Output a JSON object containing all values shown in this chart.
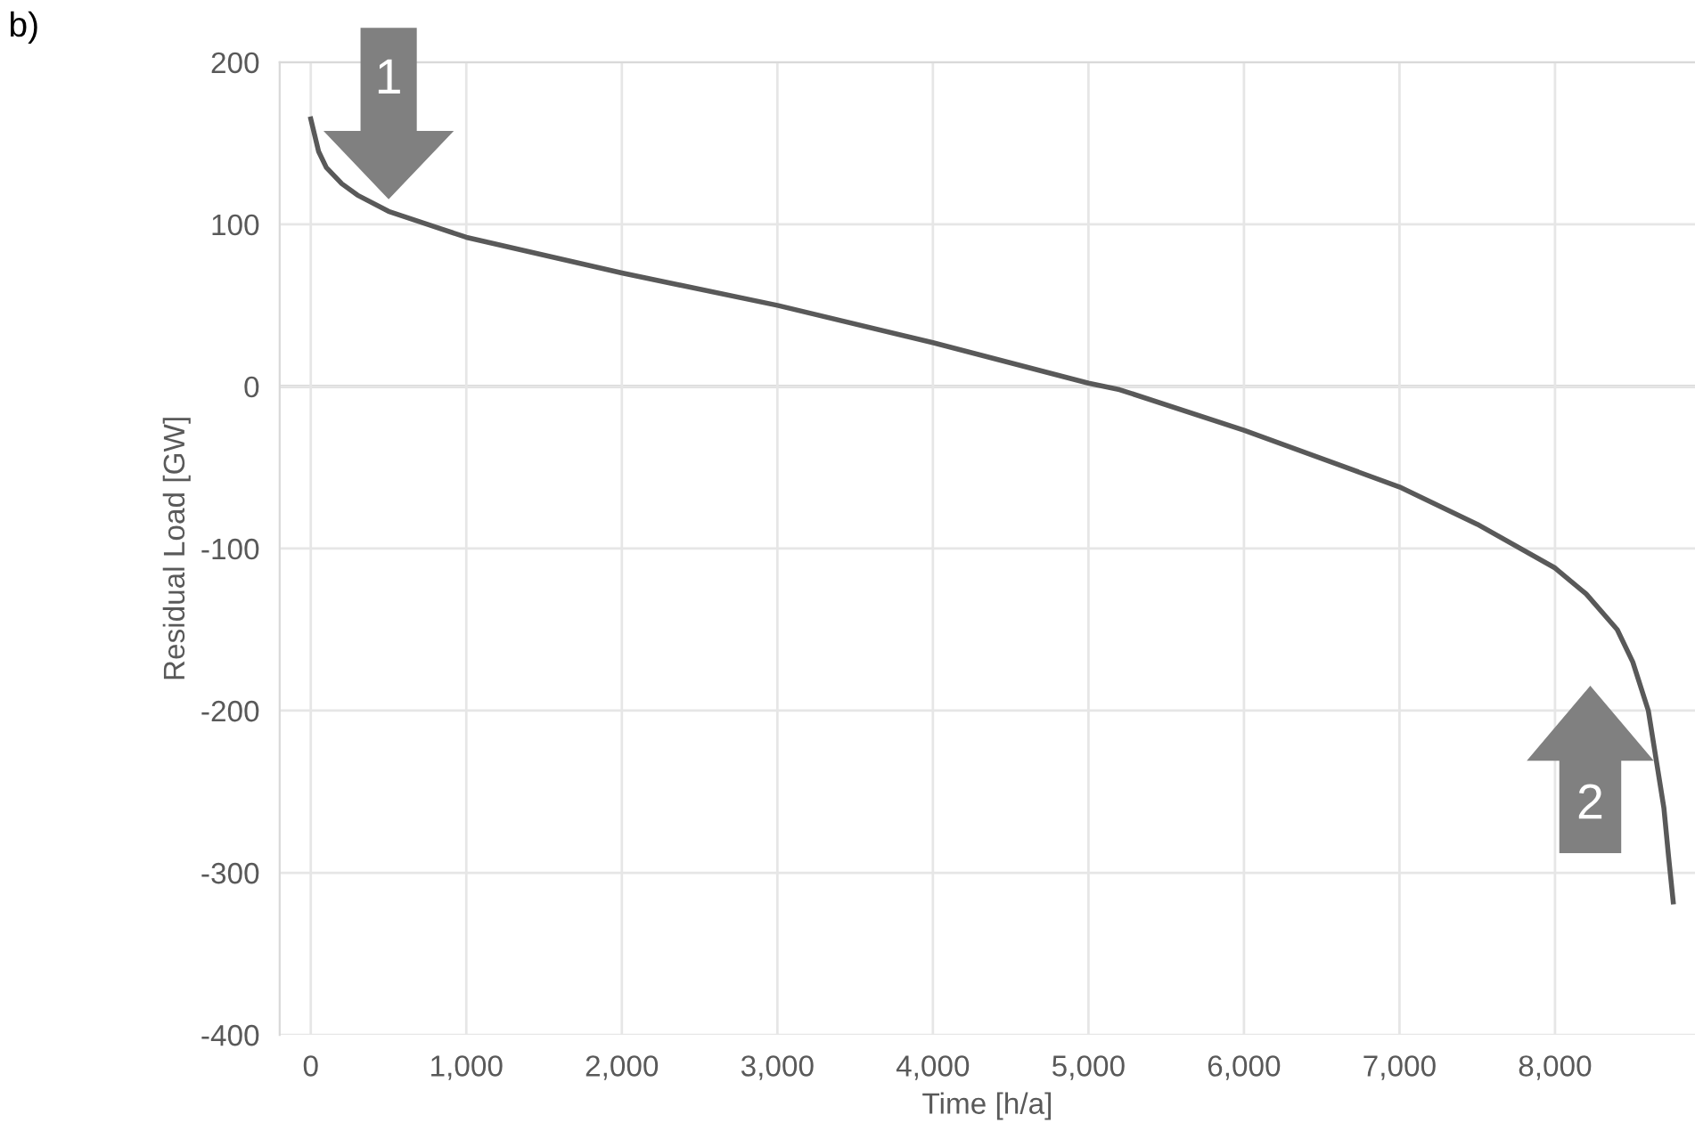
{
  "chart_data": {
    "type": "line",
    "xlabel": "Time [h/a]",
    "ylabel": "Residual Load [GW]",
    "annotations": [
      "b)",
      "1",
      "2"
    ],
    "series": [
      {
        "color": "#595959",
        "x": [
          0,
          50,
          100,
          200,
          300,
          500,
          1000,
          2000,
          3000,
          4000,
          5000,
          5200,
          6000,
          7000,
          7500,
          8000,
          8200,
          8400,
          8500,
          8600,
          8650,
          8700,
          8730,
          8760
        ],
        "values": [
          165,
          145,
          135,
          125,
          118,
          108,
          92,
          70,
          50,
          27,
          2,
          -2,
          -27,
          -62,
          -85,
          -112,
          -128,
          -150,
          -170,
          -200,
          -230,
          -260,
          -290,
          -318
        ]
      }
    ],
    "xlim": [
      -200,
      8900
    ],
    "xticks": [
      {
        "value": 0,
        "label": "0"
      },
      {
        "value": 1000,
        "label": "1,000"
      },
      {
        "value": 2000,
        "label": "2,000"
      },
      {
        "value": 3000,
        "label": "3,000"
      },
      {
        "value": 4000,
        "label": "4,000"
      },
      {
        "value": 5000,
        "label": "5,000"
      },
      {
        "value": 6000,
        "label": "6,000"
      },
      {
        "value": 7000,
        "label": "7,000"
      },
      {
        "value": 8000,
        "label": "8,000"
      }
    ],
    "ylim": [
      -400,
      200
    ],
    "yticks": [
      -400,
      -300,
      -200,
      -100,
      0,
      100,
      200
    ],
    "grid": true,
    "marker": "none",
    "line_style": "solid"
  }
}
